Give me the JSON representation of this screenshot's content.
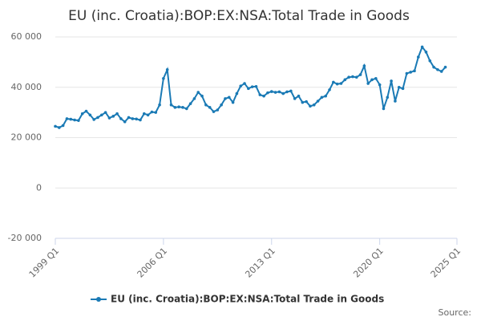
{
  "chart_data": {
    "type": "line",
    "title": "EU (inc. Croatia):BOP:EX:NSA:Total Trade in Goods",
    "source": "Source:",
    "x": [
      1999,
      1999.25,
      1999.5,
      1999.75,
      2000,
      2000.25,
      2000.5,
      2000.75,
      2001,
      2001.25,
      2001.5,
      2001.75,
      2002,
      2002.25,
      2002.5,
      2002.75,
      2003,
      2003.25,
      2003.5,
      2003.75,
      2004,
      2004.25,
      2004.5,
      2004.75,
      2005,
      2005.25,
      2005.5,
      2005.75,
      2006,
      2006.25,
      2006.5,
      2006.75,
      2007,
      2007.25,
      2007.5,
      2007.75,
      2008,
      2008.25,
      2008.5,
      2008.75,
      2009,
      2009.25,
      2009.5,
      2009.75,
      2010,
      2010.25,
      2010.5,
      2010.75,
      2011,
      2011.25,
      2011.5,
      2011.75,
      2012,
      2012.25,
      2012.5,
      2012.75,
      2013,
      2013.25,
      2013.5,
      2013.75,
      2014,
      2014.25,
      2014.5,
      2014.75,
      2015,
      2015.25,
      2015.5,
      2015.75,
      2016,
      2016.25,
      2016.5,
      2016.75,
      2017,
      2017.25,
      2017.5,
      2017.75,
      2018,
      2018.25,
      2018.5,
      2018.75,
      2019,
      2019.25,
      2019.5,
      2019.75,
      2020,
      2020.25,
      2020.5,
      2020.75,
      2021,
      2021.25,
      2021.5,
      2021.75,
      2022,
      2022.25,
      2022.5,
      2022.75,
      2023,
      2023.25,
      2023.5,
      2023.75,
      2024,
      2024.25
    ],
    "series": [
      {
        "name": "EU (inc. Croatia):BOP:EX:NSA:Total Trade in Goods",
        "color": "#1a7ab5",
        "values": [
          24500,
          24000,
          24800,
          27500,
          27300,
          27000,
          26800,
          29500,
          30500,
          29000,
          27200,
          28000,
          29000,
          30000,
          27800,
          28500,
          29500,
          27500,
          26300,
          28000,
          27500,
          27400,
          27000,
          29500,
          29000,
          30200,
          30000,
          33000,
          43500,
          47000,
          33000,
          32000,
          32200,
          32000,
          31500,
          33500,
          35500,
          38000,
          36500,
          33000,
          32000,
          30300,
          31000,
          33000,
          35500,
          36000,
          34000,
          37500,
          40500,
          41500,
          39500,
          40200,
          40300,
          37000,
          36500,
          37800,
          38300,
          38000,
          38200,
          37500,
          38200,
          38500,
          35500,
          36500,
          34000,
          34300,
          32500,
          33000,
          34500,
          36000,
          36500,
          39000,
          42000,
          41300,
          41500,
          43000,
          44000,
          44200,
          44000,
          45000,
          48500,
          41500,
          43000,
          43500,
          41000,
          31500,
          36000,
          42500,
          34500,
          40000,
          39500,
          45500,
          46000,
          46500,
          52000,
          56000,
          54000,
          50500,
          48000,
          47000,
          46300,
          48000
        ]
      }
    ],
    "xlim": [
      1999,
      2025
    ],
    "xticks": [
      {
        "value": 1999,
        "label": "1999 Q1"
      },
      {
        "value": 2006,
        "label": "2006 Q1"
      },
      {
        "value": 2013,
        "label": "2013 Q1"
      },
      {
        "value": 2020,
        "label": "2020 Q1"
      },
      {
        "value": 2025,
        "label": "2025 Q1"
      }
    ],
    "ylim": [
      -20000,
      60000
    ],
    "yticks": [
      {
        "value": -20000,
        "label": "-20 000"
      },
      0,
      {
        "value": 20000,
        "label": "20 000"
      },
      {
        "value": 40000,
        "label": "40 000"
      },
      {
        "value": 60000,
        "label": "60 000"
      }
    ],
    "grid": true
  }
}
